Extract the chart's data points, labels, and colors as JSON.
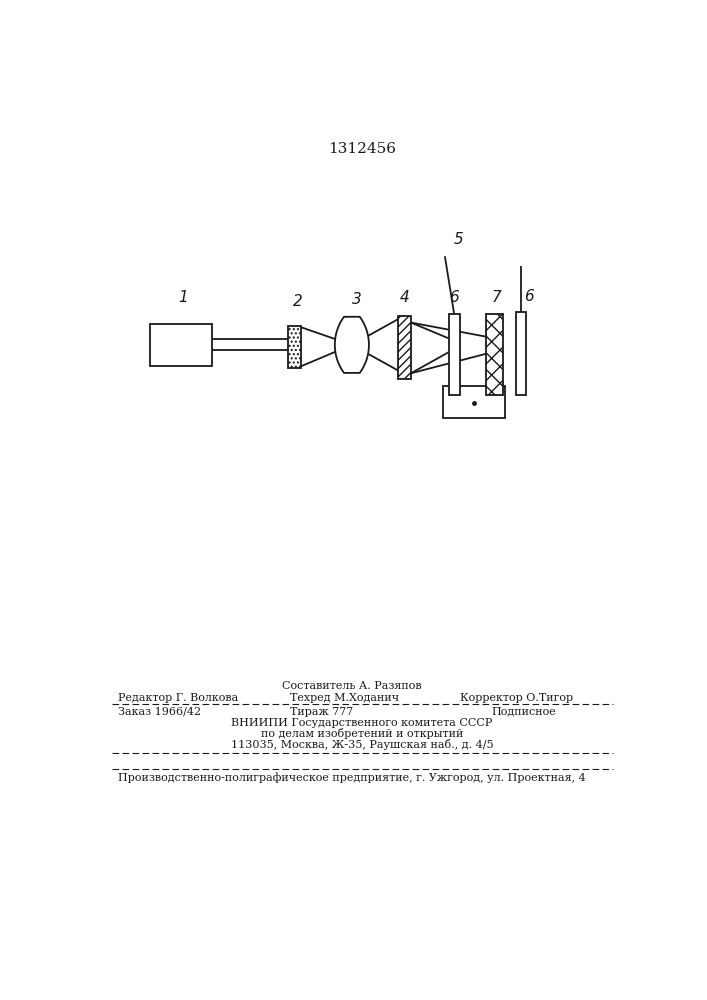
{
  "title": "1312456",
  "title_fontsize": 11,
  "bg_color": "#ffffff",
  "line_color": "#1a1a1a",
  "line_width": 1.3,
  "label_fontsize": 11,
  "sestavitel": "Составитель А. Разяпов",
  "redaktor": "Редактор Г. Волкова",
  "tehred": "Техред М.Ходанич",
  "korrektor": "Корректор О.Тигор",
  "zakaz": "Заказ 1966/42",
  "tirazh": "Тираж 777",
  "podpisnoe": "Подписное",
  "vniipи": "ВНИИПИ Государственного комитета СССР",
  "po_delam": "по делам изобретений и открытий",
  "address": "113035, Москва, Ж-35, Раушская наб., д. 4/5",
  "predpriyatie": "Производственно-полиграфическое предприятие, г. Ужгород, ул. Проектная, 4"
}
